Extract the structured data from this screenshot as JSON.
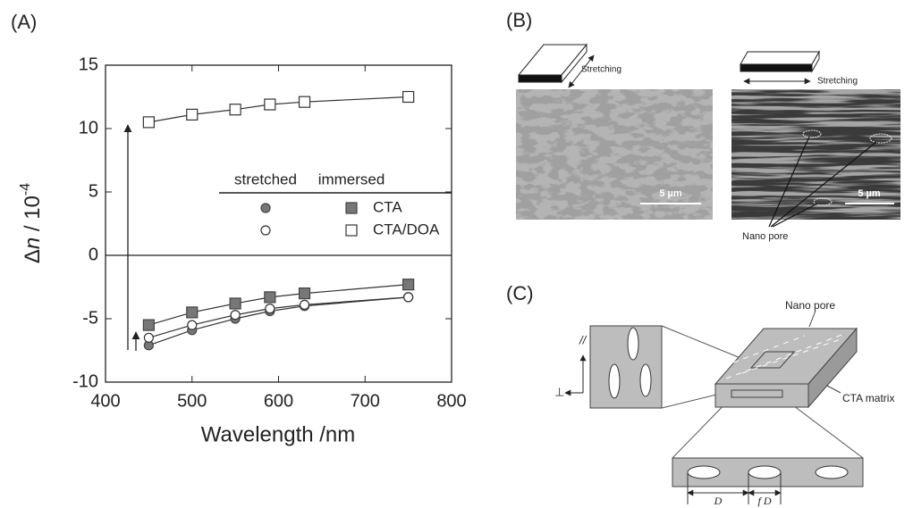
{
  "chart_data": {
    "type": "line",
    "panel_label": "(A)",
    "x": [
      450,
      500,
      550,
      590,
      630,
      750
    ],
    "xlim": [
      400,
      800
    ],
    "ylim": [
      -10,
      15
    ],
    "xticks": [
      400,
      500,
      600,
      700,
      800
    ],
    "yticks": [
      -10,
      -5,
      0,
      5,
      10,
      15
    ],
    "xlabel": "Wavelength /nm",
    "ylabel": {
      "delta": "Δ",
      "n": "n",
      "rest": " / 10",
      "exponent": "-4"
    },
    "hline": 0,
    "legend_columns": [
      "stretched",
      "immersed"
    ],
    "markers": [
      "circle",
      "square"
    ],
    "series": [
      {
        "name": "CTA",
        "color": "#444444",
        "fill": "#777777",
        "values": [
          [
            -7.1,
            -5.9,
            -5.0,
            -4.4,
            -4.0,
            -3.3
          ],
          [
            -5.5,
            -4.5,
            -3.8,
            -3.3,
            -3.0,
            -2.3
          ]
        ]
      },
      {
        "name": "CTA/DOA",
        "color": "#333333",
        "fill": "#ffffff",
        "values": [
          [
            -6.5,
            -5.5,
            -4.7,
            -4.2,
            -3.9,
            -3.3
          ],
          [
            10.5,
            11.1,
            11.5,
            11.9,
            12.1,
            12.5
          ]
        ]
      }
    ]
  },
  "panel_b": {
    "label": "(B)",
    "stretching_left": "Stretching",
    "stretching_right": "Stretching",
    "scale_left": "5 µm",
    "scale_right": "5 µm",
    "nano_pore": "Nano pore"
  },
  "panel_c": {
    "label": "(C)",
    "nano_pore": "Nano pore",
    "matrix": "CTA matrix",
    "parallel": "//",
    "perpendicular": "⊥",
    "d": "D",
    "fd": "f D"
  }
}
